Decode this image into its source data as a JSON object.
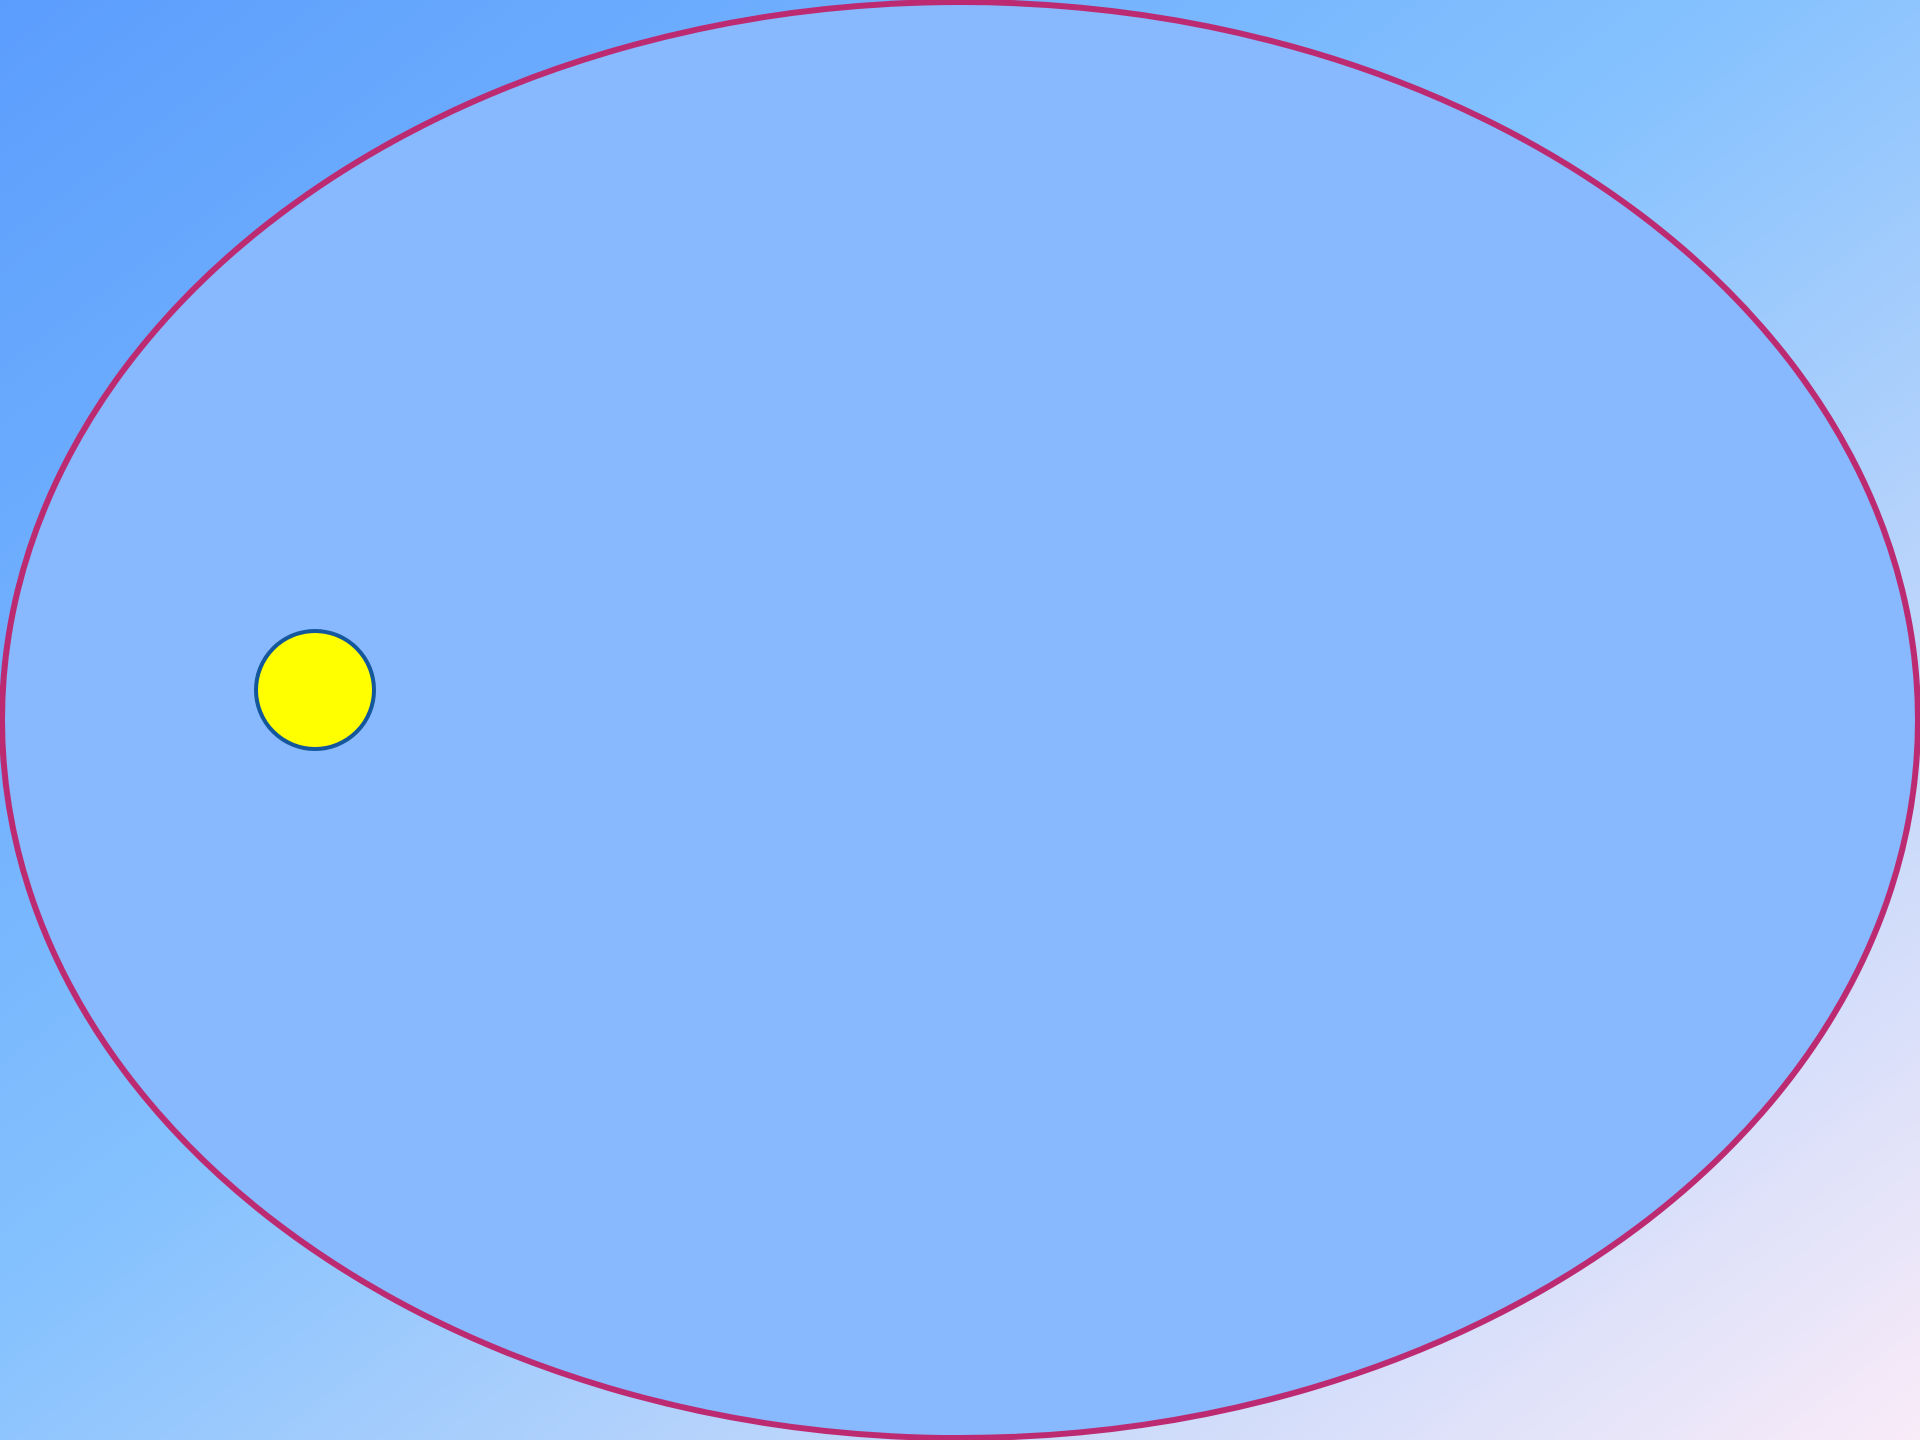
{
  "scene": {
    "background": {
      "gradient_colors": [
        "#5b9dfd",
        "#84c1fe",
        "#f9ebf8"
      ]
    },
    "arena": {
      "shape": "ellipse",
      "fill_color": "#88b8fe",
      "stroke_color": "#bc2b72"
    },
    "ball": {
      "shape": "circle",
      "fill_color": "#ffff00",
      "stroke_color": "#14579b"
    }
  }
}
